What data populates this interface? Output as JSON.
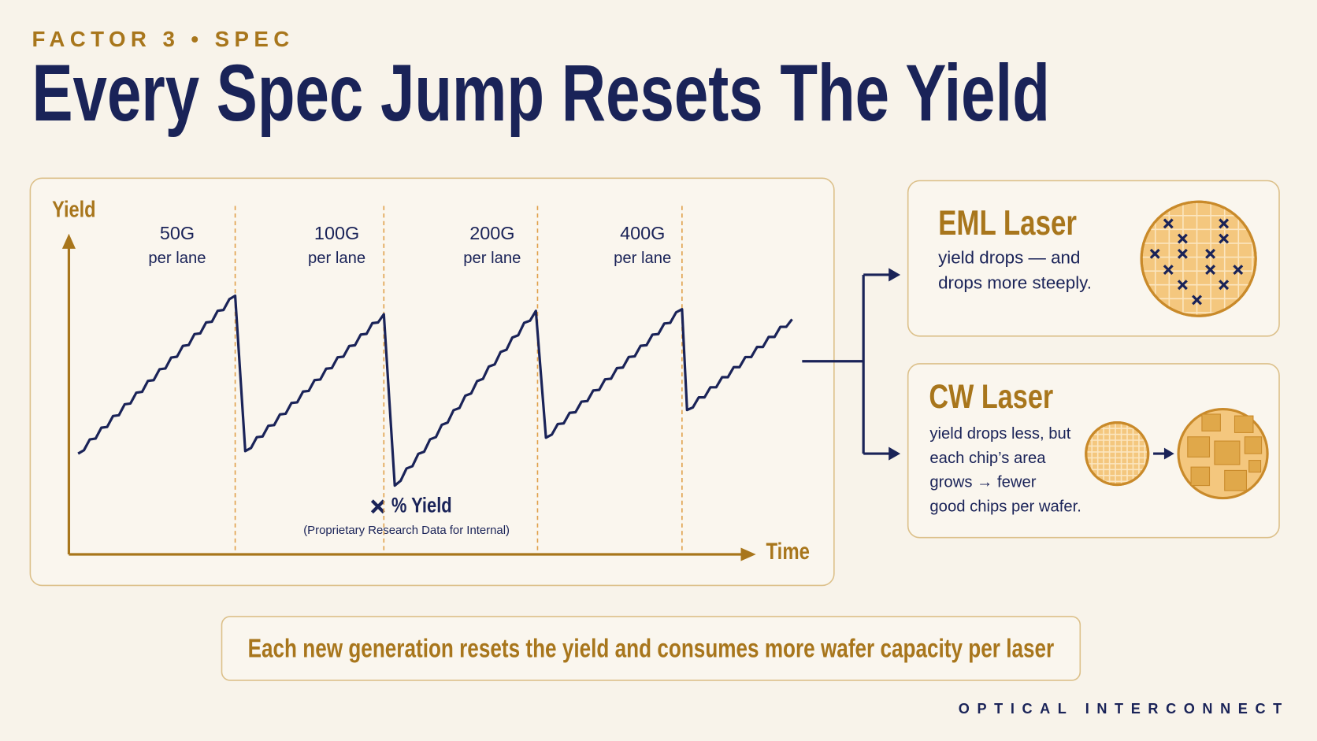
{
  "header": {
    "kicker": "FACTOR 3 • SPEC",
    "title": "Every Spec Jump Resets The Yield"
  },
  "chart": {
    "y_label": "Yield",
    "x_label": "Time",
    "generations": [
      {
        "speed": "50G",
        "unit": "per lane"
      },
      {
        "speed": "100G",
        "unit": "per lane"
      },
      {
        "speed": "200G",
        "unit": "per lane"
      },
      {
        "speed": "400G",
        "unit": "per lane"
      }
    ],
    "note_title": "% Yield",
    "note_subtitle": "(Proprietary Research Data for Internal)"
  },
  "eml": {
    "title": "EML Laser",
    "lines": [
      "yield drops — and",
      "drops more steeply."
    ]
  },
  "cw": {
    "title": "CW Laser",
    "lines": [
      "yield drops less, but",
      "each chip’s area",
      "grows → fewer",
      "good chips per wafer."
    ]
  },
  "footer": {
    "message": "Each new generation resets the yield and consumes more wafer capacity per laser",
    "brand": "OPTICAL INTERCONNECT"
  }
}
